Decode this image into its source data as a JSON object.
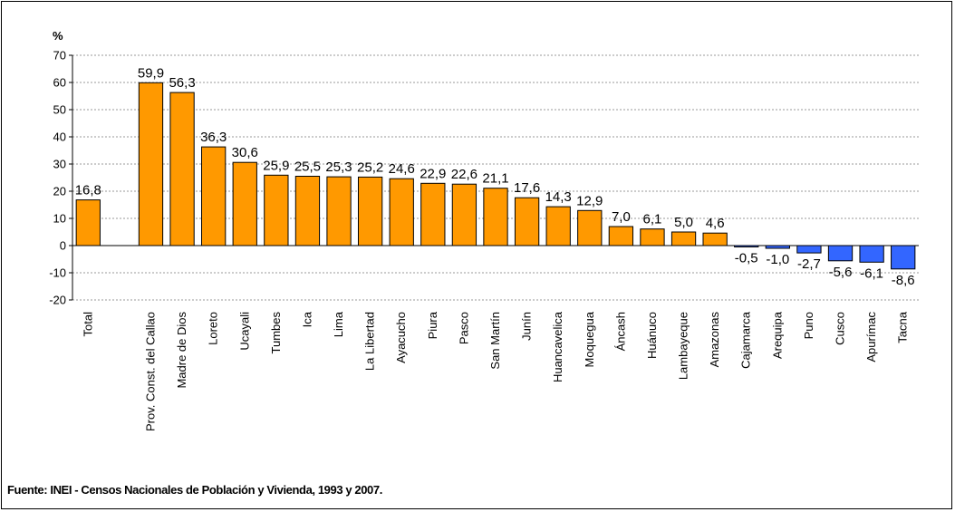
{
  "chart_data": {
    "type": "bar",
    "ylabel": "%",
    "ylim": [
      -20,
      70
    ],
    "yticks": [
      -20,
      -10,
      0,
      10,
      20,
      30,
      40,
      50,
      60,
      70
    ],
    "grid": true,
    "legend": "none",
    "colors": {
      "positive": "#ff9900",
      "negative": "#3366ff",
      "grid": "#999999"
    },
    "categories": [
      "Total",
      "Prov. Const. del Callao",
      "Madre de Dios",
      "Loreto",
      "Ucayali",
      "Tumbes",
      "Ica",
      "Lima",
      "La Libertad",
      "Ayacucho",
      "Piura",
      "Pasco",
      "San Martín",
      "Junín",
      "Huancavelica",
      "Moquegua",
      "Áncash",
      "Huánuco",
      "Lambayeque",
      "Amazonas",
      "Cajamarca",
      "Arequipa",
      "Puno",
      "Cusco",
      "Apurímac",
      "Tacna"
    ],
    "values": [
      16.8,
      59.9,
      56.3,
      36.3,
      30.6,
      25.9,
      25.5,
      25.3,
      25.2,
      24.6,
      22.9,
      22.6,
      21.1,
      17.6,
      14.3,
      12.9,
      7.0,
      6.1,
      5.0,
      4.6,
      -0.5,
      -1.0,
      -2.7,
      -5.6,
      -6.1,
      -8.6
    ],
    "value_labels": [
      "16,8",
      "59,9",
      "56,3",
      "36,3",
      "30,6",
      "25,9",
      "25,5",
      "25,3",
      "25,2",
      "24,6",
      "22,9",
      "22,6",
      "21,1",
      "17,6",
      "14,3",
      "12,9",
      "7,0",
      "6,1",
      "5,0",
      "4,6",
      "-0,5",
      "-1,0",
      "-2,7",
      "-5,6",
      "-6,1",
      "-8,6"
    ]
  },
  "source": "Fuente: INEI - Censos Nacionales de Población y Vivienda, 1993 y 2007."
}
